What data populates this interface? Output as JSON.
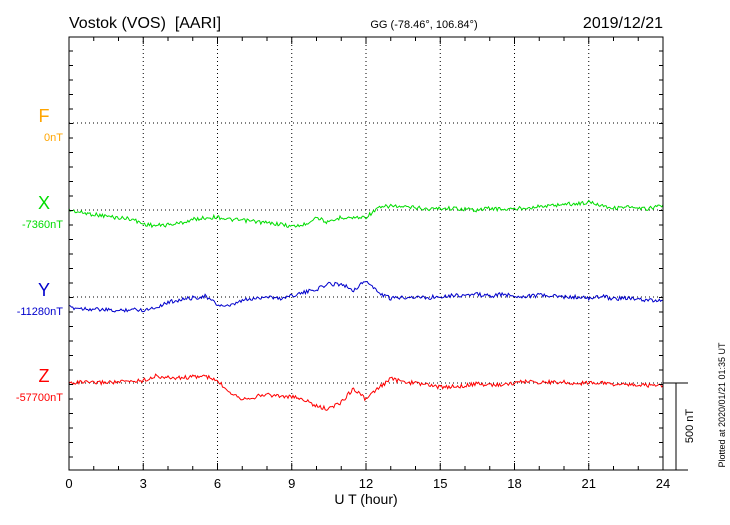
{
  "header": {
    "station": "Vostok (VOS)  [AARI]",
    "coords": "GG (-78.46°, 106.84°)",
    "date": "2019/12/21"
  },
  "plotted_note": "Plotted at 2020/01/21 01:35 UT",
  "scale_label": "500 nT",
  "chart_data": {
    "type": "line",
    "xlabel": "U T (hour)",
    "xlim": [
      0,
      24
    ],
    "xticks": [
      0,
      3,
      6,
      9,
      12,
      15,
      18,
      21,
      24
    ],
    "ylabel": "",
    "grid": true,
    "components": [
      {
        "name": "F",
        "baseline": "0nT",
        "color": "#ffa500"
      },
      {
        "name": "X",
        "baseline": "-7360nT",
        "color": "#00dd00"
      },
      {
        "name": "Y",
        "baseline": "-11280nT",
        "color": "#0000cc"
      },
      {
        "name": "Z",
        "baseline": "-57700nT",
        "color": "#ff0000"
      }
    ],
    "series": [
      {
        "name": "X",
        "color": "#00dd00",
        "baseline_nT": -7360,
        "x": [
          0,
          0.5,
          1,
          1.5,
          2,
          2.5,
          3,
          3.5,
          4,
          4.5,
          5,
          5.5,
          6,
          6.5,
          7,
          7.5,
          8,
          8.5,
          9,
          9.5,
          10,
          10.5,
          11,
          11.5,
          12,
          12.5,
          13,
          13.5,
          14,
          14.5,
          15,
          15.5,
          16,
          16.5,
          17,
          17.5,
          18,
          18.5,
          19,
          19.5,
          20,
          20.5,
          21,
          21.5,
          22,
          22.5,
          23,
          23.5,
          24
        ],
        "y": [
          0,
          -15,
          -25,
          -35,
          -45,
          -50,
          -80,
          -90,
          -85,
          -75,
          -55,
          -45,
          -40,
          -55,
          -60,
          -65,
          -75,
          -80,
          -95,
          -85,
          -40,
          -75,
          -40,
          -45,
          -40,
          10,
          25,
          15,
          15,
          5,
          10,
          10,
          5,
          0,
          10,
          5,
          5,
          15,
          20,
          25,
          35,
          35,
          45,
          30,
          10,
          20,
          5,
          10,
          30
        ]
      },
      {
        "name": "Y",
        "color": "#0000cc",
        "baseline_nT": -11280,
        "x": [
          0,
          0.5,
          1,
          1.5,
          2,
          2.5,
          3,
          3.5,
          4,
          4.5,
          5,
          5.5,
          6,
          6.5,
          7,
          7.5,
          8,
          8.5,
          9,
          9.5,
          10,
          10.5,
          11,
          11.5,
          12,
          12.5,
          13,
          13.5,
          14,
          14.5,
          15,
          15.5,
          16,
          16.5,
          17,
          17.5,
          18,
          18.5,
          19,
          19.5,
          20,
          20.5,
          21,
          21.5,
          22,
          22.5,
          23,
          23.5,
          24
        ],
        "y": [
          -60,
          -65,
          -70,
          -75,
          -80,
          -70,
          -75,
          -60,
          -30,
          -15,
          -5,
          5,
          -45,
          -55,
          -20,
          -10,
          5,
          -10,
          10,
          25,
          45,
          75,
          75,
          40,
          95,
          25,
          -10,
          0,
          0,
          -5,
          5,
          10,
          10,
          15,
          5,
          15,
          5,
          5,
          10,
          5,
          0,
          0,
          -10,
          5,
          -10,
          -5,
          -15,
          -20,
          -20
        ]
      },
      {
        "name": "Z",
        "color": "#ff0000",
        "baseline_nT": -57700,
        "x": [
          0,
          0.5,
          1,
          1.5,
          2,
          2.5,
          3,
          3.5,
          4,
          4.5,
          5,
          5.5,
          6,
          6.5,
          7,
          7.5,
          8,
          8.5,
          9,
          9.5,
          10,
          10.5,
          11,
          11.5,
          12,
          12.5,
          13,
          13.5,
          14,
          14.5,
          15,
          15.5,
          16,
          16.5,
          17,
          17.5,
          18,
          18.5,
          19,
          19.5,
          20,
          20.5,
          21,
          21.5,
          22,
          22.5,
          23,
          23.5,
          24
        ],
        "y": [
          0,
          5,
          0,
          5,
          5,
          10,
          15,
          40,
          30,
          30,
          35,
          40,
          10,
          -50,
          -90,
          -80,
          -65,
          -75,
          -80,
          -95,
          -135,
          -150,
          -110,
          -30,
          -95,
          -30,
          25,
          5,
          0,
          -10,
          -25,
          -20,
          -15,
          -5,
          -10,
          -10,
          0,
          10,
          5,
          5,
          5,
          -5,
          5,
          0,
          -5,
          -10,
          -10,
          -15,
          -15
        ]
      }
    ]
  }
}
